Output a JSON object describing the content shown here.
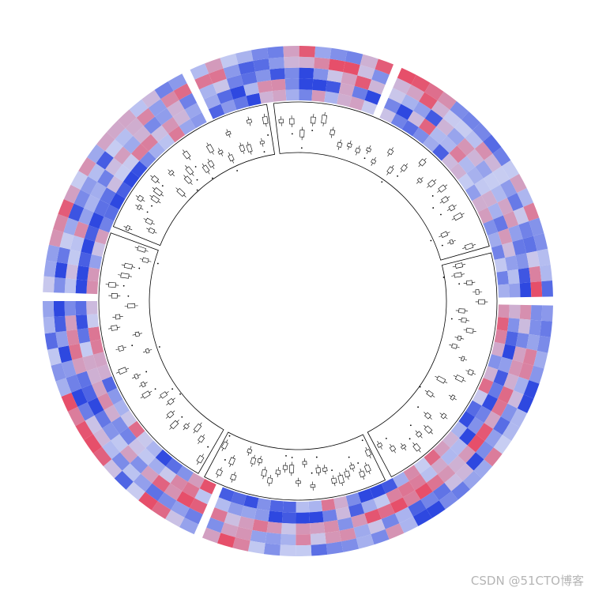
{
  "watermark": "CSDN @51CTO博客",
  "chart_data": {
    "type": "heatmap",
    "layout": "circular",
    "title": "",
    "sectors": [
      "",
      "",
      "",
      ""
    ],
    "heatmap_tracks": 5,
    "colors": {
      "low": "#2e48e0",
      "mid": "#c7cdf2",
      "high": "#e64f6a"
    },
    "boxplot_track": {
      "type": "boxplot",
      "cells_per_sector": 24
    }
  }
}
